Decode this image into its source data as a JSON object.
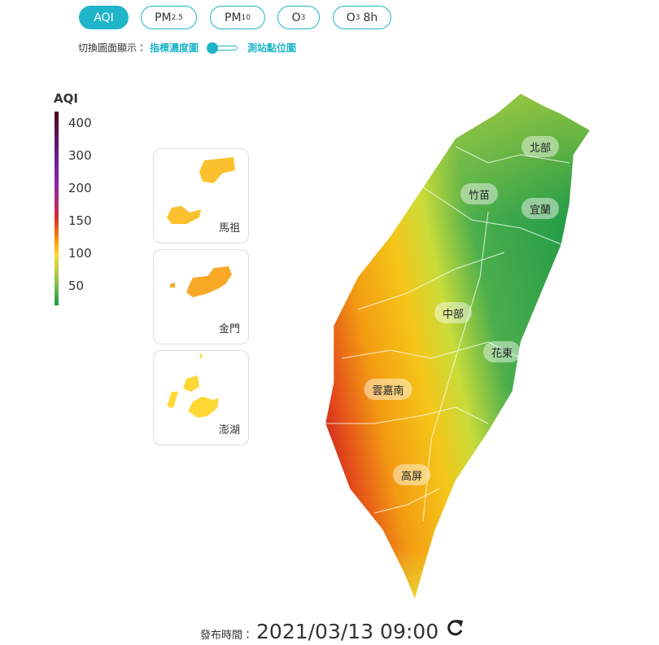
{
  "tabs": [
    {
      "label": "AQI",
      "active": true
    },
    {
      "label": "PM",
      "sub": "2.5"
    },
    {
      "label": "PM",
      "sub": "10"
    },
    {
      "label": "O",
      "sub": "3"
    },
    {
      "label": "O",
      "sub": "3",
      "suffix": "8h"
    }
  ],
  "toggle": {
    "prompt": "切換圖面顯示：",
    "left": "指標濃度圖",
    "right": "測站點位圖"
  },
  "legend": {
    "title": "AQI",
    "ticks": [
      400,
      300,
      200,
      150,
      100,
      50
    ]
  },
  "insets": [
    "馬祖",
    "金門",
    "澎湖"
  ],
  "regions": [
    "北部",
    "竹苗",
    "宜蘭",
    "中部",
    "花東",
    "雲嘉南",
    "高屏"
  ],
  "footer": {
    "label": "發布時間：",
    "time": "2021/03/13 09:00"
  }
}
